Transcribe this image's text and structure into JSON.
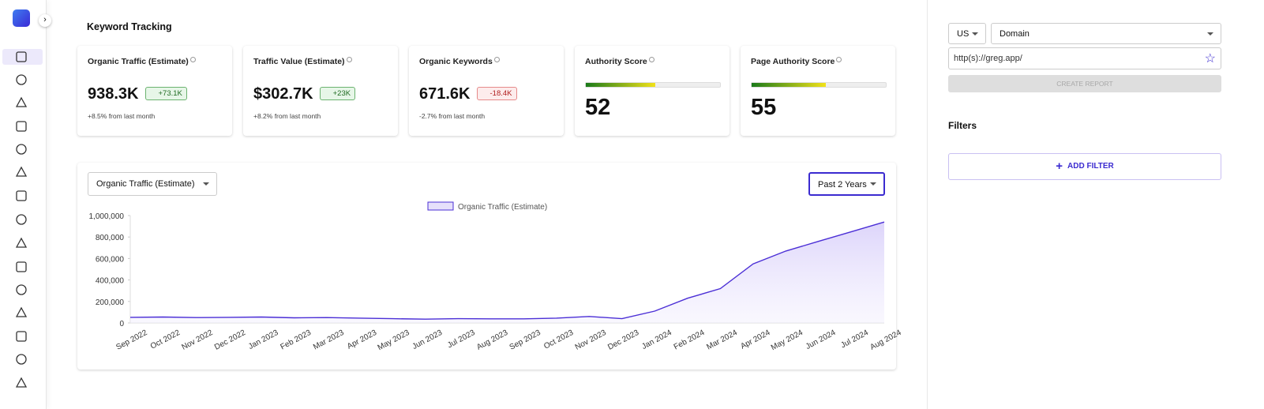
{
  "header": {
    "title": "Keyword Tracking"
  },
  "cards": [
    {
      "label": "Organic Traffic (Estimate)",
      "value": "938.3K",
      "badge": "+73.1K",
      "trend": "up",
      "change": "+8.5% from last month"
    },
    {
      "label": "Traffic Value (Estimate)",
      "value": "$302.7K",
      "badge": "+23K",
      "trend": "up",
      "change": "+8.2% from last month"
    },
    {
      "label": "Organic Keywords",
      "value": "671.6K",
      "badge": "-18.4K",
      "trend": "down",
      "change": "-2.7% from last month"
    }
  ],
  "score_cards": [
    {
      "label": "Authority Score",
      "score": 52
    },
    {
      "label": "Page Authority Score",
      "score": 55
    }
  ],
  "chart_panel": {
    "metric_select": "Organic Traffic (Estimate)",
    "range_select": "Past 2 Years"
  },
  "chart_data": {
    "type": "line",
    "categories": [
      "Sep 2022",
      "Oct 2022",
      "Nov 2022",
      "Dec 2022",
      "Jan 2023",
      "Feb 2023",
      "Mar 2023",
      "Apr 2023",
      "May 2023",
      "Jun 2023",
      "Jul 2023",
      "Aug 2023",
      "Sep 2023",
      "Oct 2023",
      "Nov 2023",
      "Dec 2023",
      "Jan 2024",
      "Feb 2024",
      "Mar 2024",
      "Apr 2024",
      "May 2024",
      "Jun 2024",
      "Jul 2024",
      "Aug 2024"
    ],
    "series": [
      {
        "name": "Organic Traffic (Estimate)",
        "color": "#4b2fd6",
        "values": [
          52000,
          55000,
          50000,
          52000,
          55000,
          48000,
          50000,
          45000,
          40000,
          35000,
          40000,
          38000,
          38000,
          45000,
          60000,
          40000,
          110000,
          230000,
          320000,
          550000,
          670000,
          760000,
          850000,
          940000
        ]
      }
    ],
    "ylim": [
      0,
      1000000
    ],
    "yticks": [
      0,
      {
        "value": 200000,
        "label": "200,000"
      },
      {
        "value": 400000,
        "label": "400,000"
      },
      {
        "value": 600000,
        "label": "600,000"
      },
      {
        "value": 800000,
        "label": "800,000"
      },
      {
        "value": 1000000,
        "label": "1,000,000"
      }
    ],
    "grid": false,
    "legend": "top"
  },
  "side_panel": {
    "country": "US",
    "mode": "Domain",
    "url": "http(s)://greg.app/",
    "button": "CREATE REPORT",
    "filters_title": "Filters",
    "add_filter": "ADD FILTER"
  }
}
